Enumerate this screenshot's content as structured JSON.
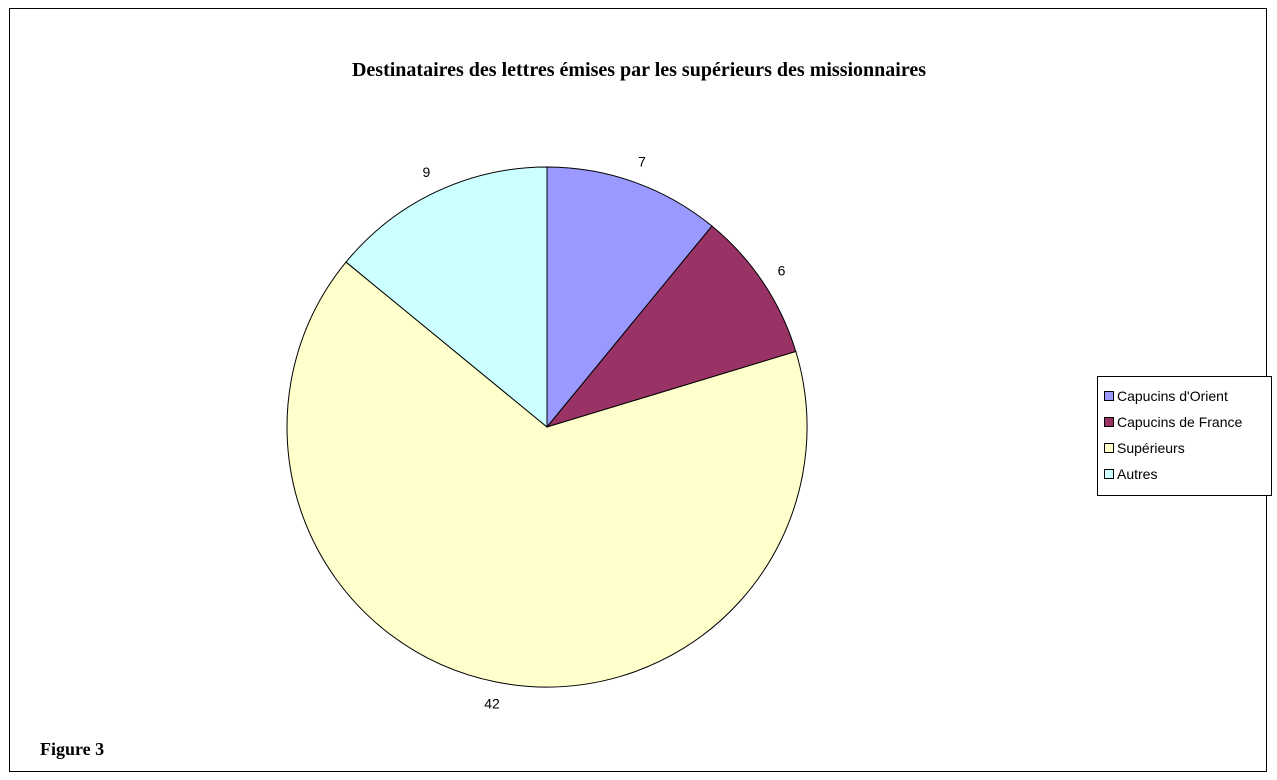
{
  "figure_caption": "Figure 3",
  "chart_data": {
    "type": "pie",
    "title": "Destinataires des lettres émises par les supérieurs des missionnaires",
    "categories": [
      "Capucins d'Orient",
      "Capucins de France",
      "Supérieurs",
      "Autres"
    ],
    "values": [
      7,
      6,
      42,
      9
    ],
    "data_labels": [
      "7",
      "6",
      "42",
      "9"
    ],
    "colors": [
      "#9999FF",
      "#993366",
      "#FFFFCC",
      "#CCFFFF"
    ],
    "start_angle": "12 o'clock",
    "direction": "clockwise",
    "legend_position": "right"
  }
}
